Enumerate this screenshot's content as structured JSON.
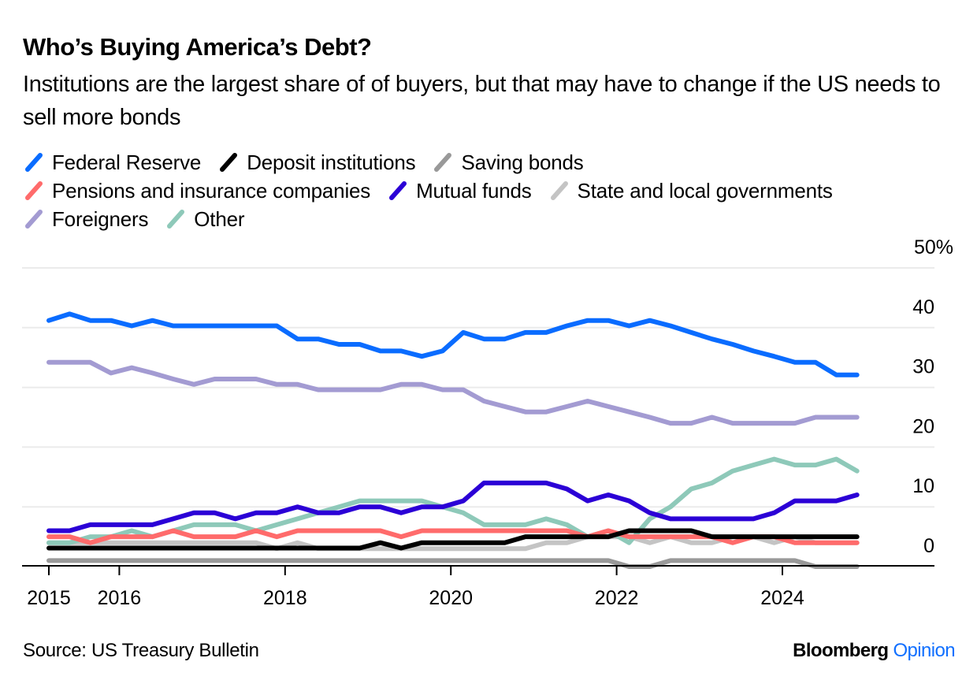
{
  "header": {
    "title": "Who’s Buying America’s Debt?",
    "subtitle": "Institutions are the largest share of of buyers, but that may have to change if the US needs to sell more bonds"
  },
  "footer": {
    "source": "Source: US Treasury Bulletin",
    "brand_name": "Bloomberg",
    "brand_suffix": "Opinion"
  },
  "chart_data": {
    "type": "line",
    "title": "Who’s Buying America’s Debt?",
    "xlabel": "",
    "ylabel": "",
    "y_unit": "%",
    "ylim": [
      0,
      50
    ],
    "yticks": [
      0,
      10,
      20,
      30,
      40,
      50
    ],
    "ytick_labels": [
      "0",
      "10",
      "20",
      "30",
      "40",
      "50%"
    ],
    "xlim": [
      2014.9,
      2025.1
    ],
    "xticks": [
      2015,
      2016,
      2018,
      2020,
      2022,
      2024
    ],
    "xtick_labels": [
      "2015",
      "2016",
      "2018",
      "2020",
      "2022",
      "2024"
    ],
    "grid": true,
    "legend_position": "top-left",
    "x": [
      2015.0,
      2015.25,
      2015.5,
      2015.75,
      2016.0,
      2016.25,
      2016.5,
      2016.75,
      2017.0,
      2017.25,
      2017.5,
      2017.75,
      2018.0,
      2018.25,
      2018.5,
      2018.75,
      2019.0,
      2019.25,
      2019.5,
      2019.75,
      2020.0,
      2020.25,
      2020.5,
      2020.75,
      2021.0,
      2021.25,
      2021.5,
      2021.75,
      2022.0,
      2022.25,
      2022.5,
      2022.75,
      2023.0,
      2023.25,
      2023.5,
      2023.75,
      2024.0,
      2024.25,
      2024.5,
      2024.75
    ],
    "series": [
      {
        "name": "Federal Reserve",
        "color": "#0a6cff",
        "values": [
          41.2,
          42.3,
          41.2,
          41.2,
          40.3,
          41.2,
          40.3,
          40.3,
          40.3,
          40.3,
          40.3,
          40.3,
          38.1,
          38.1,
          37.2,
          37.2,
          36.1,
          36.1,
          35.2,
          36.1,
          39.2,
          38.1,
          38.1,
          39.2,
          39.2,
          40.3,
          41.2,
          41.2,
          40.3,
          41.2,
          40.3,
          39.2,
          38.1,
          37.2,
          36.1,
          35.2,
          34.2,
          34.2,
          32.1,
          32.1
        ]
      },
      {
        "name": "Deposit institutions",
        "color": "#000000",
        "values": [
          3.1,
          3.1,
          3.1,
          3.1,
          3.1,
          3.1,
          3.1,
          3.1,
          3.1,
          3.1,
          3.1,
          3.1,
          3.1,
          3.1,
          3.1,
          3.1,
          4.0,
          3.1,
          4.0,
          4.0,
          4.0,
          4.0,
          4.0,
          5.0,
          5.0,
          5.0,
          5.0,
          5.0,
          6.0,
          6.0,
          6.0,
          6.0,
          5.0,
          5.0,
          5.0,
          5.0,
          5.0,
          5.0,
          5.0,
          5.0
        ]
      },
      {
        "name": "Saving bonds",
        "color": "#999999",
        "values": [
          1.0,
          1.0,
          1.0,
          1.0,
          1.0,
          1.0,
          1.0,
          1.0,
          1.0,
          1.0,
          1.0,
          1.0,
          1.0,
          1.0,
          1.0,
          1.0,
          1.0,
          1.0,
          1.0,
          1.0,
          1.0,
          1.0,
          1.0,
          1.0,
          1.0,
          1.0,
          1.0,
          1.0,
          0.0,
          0.0,
          1.0,
          1.0,
          1.0,
          1.0,
          1.0,
          1.0,
          1.0,
          0.0,
          0.0,
          0.0
        ]
      },
      {
        "name": "Pensions and insurance companies",
        "color": "#ff6b6b",
        "values": [
          5.0,
          5.0,
          4.0,
          5.0,
          5.0,
          5.0,
          6.0,
          5.0,
          5.0,
          5.0,
          6.0,
          5.0,
          6.0,
          6.0,
          6.0,
          6.0,
          6.0,
          5.0,
          6.0,
          6.0,
          6.0,
          6.0,
          6.0,
          6.0,
          6.0,
          6.0,
          5.0,
          6.0,
          5.0,
          5.0,
          5.0,
          5.0,
          5.0,
          4.0,
          5.0,
          5.0,
          4.0,
          4.0,
          4.0,
          4.0
        ]
      },
      {
        "name": "Mutual funds",
        "color": "#2b00d6",
        "values": [
          6.0,
          6.0,
          7.0,
          7.0,
          7.0,
          7.0,
          8.0,
          9.0,
          9.0,
          8.0,
          9.0,
          9.0,
          10.0,
          9.0,
          9.0,
          10.0,
          10.0,
          9.0,
          10.0,
          10.0,
          11.0,
          14.0,
          14.0,
          14.0,
          14.0,
          13.0,
          11.0,
          12.0,
          11.0,
          9.0,
          8.0,
          8.0,
          8.0,
          8.0,
          8.0,
          9.0,
          11.0,
          11.0,
          11.0,
          12.0
        ]
      },
      {
        "name": "State and local governments",
        "color": "#c4c4c4",
        "values": [
          4.0,
          4.0,
          4.0,
          4.0,
          4.0,
          4.0,
          4.0,
          4.0,
          4.0,
          4.0,
          4.0,
          3.0,
          4.0,
          3.0,
          3.0,
          3.0,
          3.0,
          3.0,
          3.0,
          3.0,
          3.0,
          3.0,
          3.0,
          3.0,
          4.0,
          4.0,
          5.0,
          5.0,
          5.0,
          4.0,
          5.0,
          4.0,
          4.0,
          5.0,
          5.0,
          4.0,
          5.0,
          4.0,
          4.0,
          4.0
        ]
      },
      {
        "name": "Foreigners",
        "color": "#a39bd2",
        "values": [
          34.2,
          34.2,
          34.2,
          32.4,
          33.3,
          32.4,
          31.4,
          30.5,
          31.4,
          31.4,
          31.4,
          30.5,
          30.5,
          29.6,
          29.6,
          29.6,
          29.6,
          30.5,
          30.5,
          29.6,
          29.6,
          27.7,
          26.8,
          25.9,
          25.9,
          26.8,
          27.7,
          26.8,
          25.9,
          25.0,
          24.0,
          24.0,
          25.0,
          24.0,
          24.0,
          24.0,
          24.0,
          25.0,
          25.0,
          25.0
        ]
      },
      {
        "name": "Other",
        "color": "#8ec9b9",
        "values": [
          4.0,
          4.0,
          5.0,
          5.0,
          6.0,
          5.0,
          6.0,
          7.0,
          7.0,
          7.0,
          6.0,
          7.0,
          8.0,
          9.0,
          10.0,
          11.0,
          11.0,
          11.0,
          11.0,
          10.0,
          9.0,
          7.0,
          7.0,
          7.0,
          8.0,
          7.0,
          5.0,
          6.0,
          4.0,
          8.0,
          10.0,
          13.0,
          14.0,
          16.0,
          17.0,
          18.0,
          17.0,
          17.0,
          18.0,
          16.0
        ]
      }
    ]
  }
}
